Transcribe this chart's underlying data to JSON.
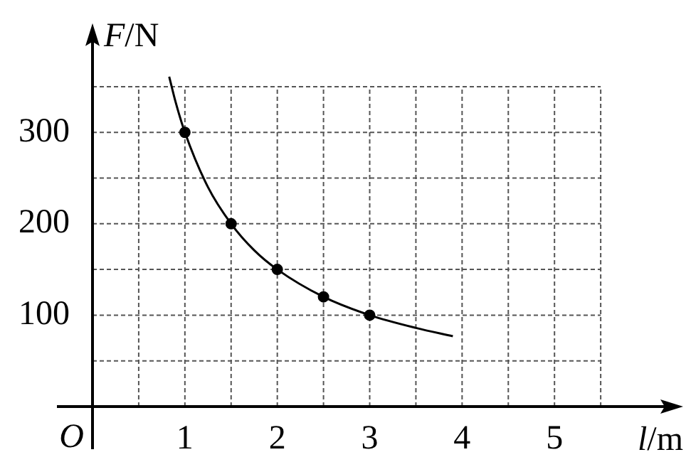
{
  "chart_data": {
    "type": "scatter",
    "xlabel": "l/m",
    "ylabel": "F/N",
    "annotations": [
      "O"
    ],
    "xlim": [
      0,
      6.3
    ],
    "ylim": [
      0,
      410
    ],
    "xticks": [
      {
        "value": 0.5,
        "label": null
      },
      1,
      {
        "value": 1.5,
        "label": null
      },
      2,
      {
        "value": 2.5,
        "label": null
      },
      3,
      {
        "value": 3.5,
        "label": null
      },
      4,
      {
        "value": 4.5,
        "label": null
      },
      5,
      {
        "value": 5.5,
        "label": null
      }
    ],
    "yticks": [
      {
        "value": 50,
        "label": null
      },
      100,
      {
        "value": 150,
        "label": null
      },
      200,
      {
        "value": 250,
        "label": null
      },
      300,
      {
        "value": 350,
        "label": null
      }
    ],
    "grid": true,
    "series": [
      {
        "type": "line",
        "marker": "none",
        "color": "#000000",
        "x": [
          0.83,
          0.9,
          1,
          1.25,
          1.5,
          1.75,
          2,
          2.5,
          3,
          3.5,
          3.9
        ],
        "values": [
          361,
          333,
          300,
          240,
          200,
          171,
          150,
          120,
          100,
          86,
          77
        ]
      },
      {
        "marker": "circle",
        "color": "#000000",
        "x": [
          1,
          1.5,
          2,
          2.5,
          3
        ],
        "values": [
          300,
          200,
          150,
          120,
          100
        ]
      }
    ]
  }
}
